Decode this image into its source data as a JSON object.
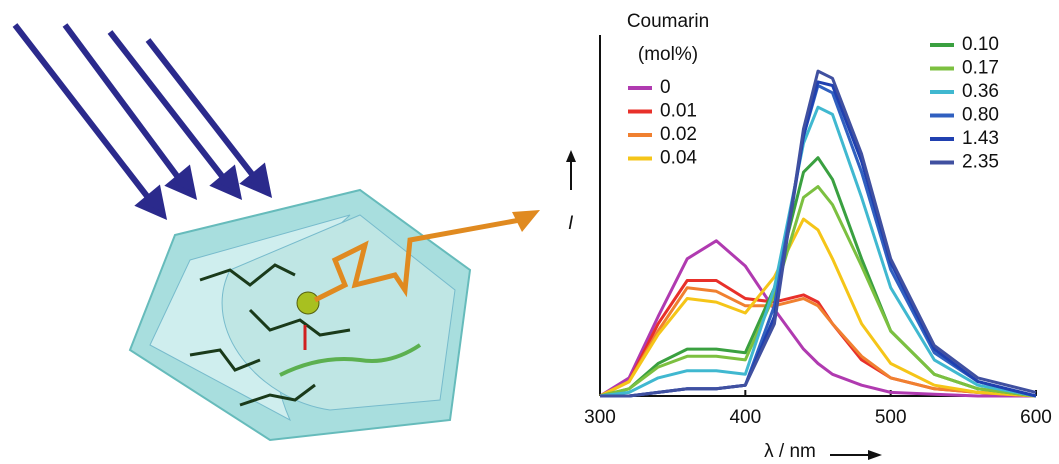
{
  "chart_data": {
    "type": "line",
    "legend_title": "Coumarin",
    "legend_subtitle": "(mol%)",
    "xlabel": "λ / nm",
    "ylabel": "I",
    "x": [
      300,
      320,
      340,
      360,
      380,
      400,
      420,
      440,
      450,
      460,
      480,
      500,
      530,
      560,
      600
    ],
    "xlim": [
      300,
      600
    ],
    "xticks": [
      300,
      400,
      500,
      600
    ],
    "ylim": [
      0,
      100
    ],
    "series": [
      {
        "name": "0",
        "color": "#b03ab0",
        "values": [
          0,
          5,
          22,
          38,
          43,
          36,
          24,
          13,
          9,
          6,
          3,
          1,
          0.5,
          0,
          0
        ]
      },
      {
        "name": "0.01",
        "color": "#e8302a",
        "values": [
          0,
          4,
          20,
          32,
          32,
          27,
          26,
          28,
          26,
          20,
          10,
          5,
          2,
          1,
          0
        ]
      },
      {
        "name": "0.02",
        "color": "#f08030",
        "values": [
          0,
          4,
          18,
          30,
          29,
          25,
          25,
          27,
          25,
          20,
          11,
          5,
          2,
          1,
          0
        ]
      },
      {
        "name": "0.04",
        "color": "#f5c518",
        "values": [
          0,
          4,
          17,
          27,
          26,
          23,
          33,
          49,
          46,
          38,
          20,
          9,
          3,
          1,
          0
        ]
      },
      {
        "name": "0.10",
        "color": "#3aa040",
        "values": [
          0,
          2,
          9,
          13,
          13,
          12,
          30,
          62,
          66,
          60,
          38,
          18,
          6,
          2,
          0
        ]
      },
      {
        "name": "0.17",
        "color": "#7cc040",
        "values": [
          0,
          2,
          8,
          11,
          11,
          10,
          28,
          55,
          58,
          53,
          36,
          18,
          6,
          2,
          0
        ]
      },
      {
        "name": "0.36",
        "color": "#40b8d0",
        "values": [
          0,
          1,
          5,
          7,
          7,
          6,
          30,
          70,
          80,
          78,
          55,
          30,
          10,
          3,
          0
        ]
      },
      {
        "name": "0.80",
        "color": "#3060c0",
        "values": [
          0,
          0,
          1,
          2,
          2,
          3,
          25,
          72,
          86,
          84,
          62,
          35,
          12,
          4,
          0
        ]
      },
      {
        "name": "1.43",
        "color": "#2040b0",
        "values": [
          0,
          0,
          1,
          2,
          2,
          3,
          22,
          72,
          87,
          86,
          65,
          37,
          13,
          4,
          0
        ]
      },
      {
        "name": "2.35",
        "color": "#4050a0",
        "values": [
          0,
          0,
          1,
          2,
          2,
          3,
          20,
          74,
          90,
          88,
          67,
          38,
          14,
          5,
          1
        ]
      }
    ]
  }
}
